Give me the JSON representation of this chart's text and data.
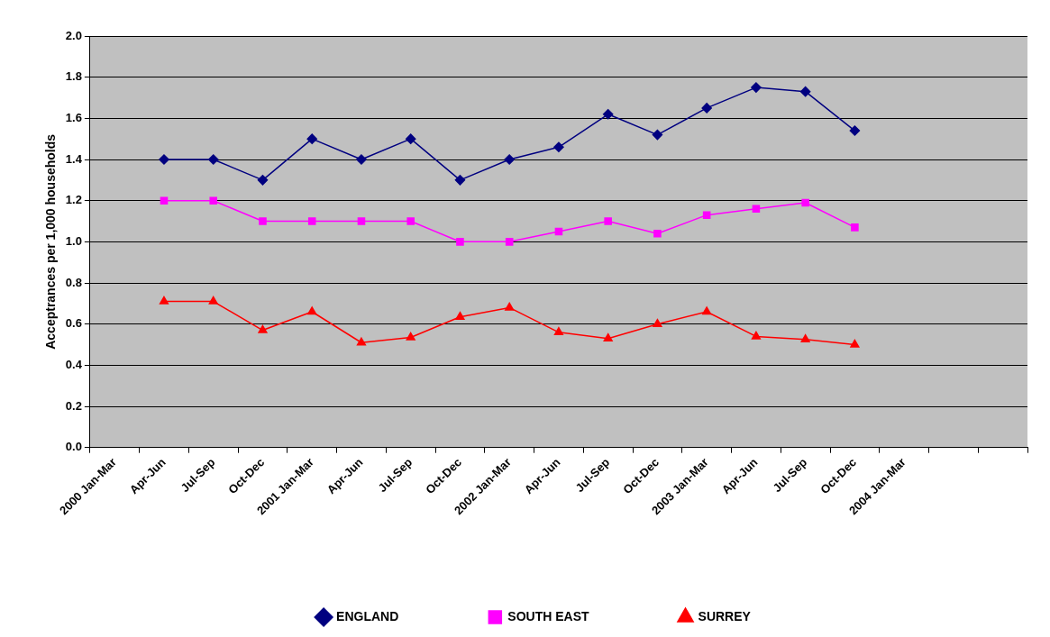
{
  "chart_data": {
    "type": "line",
    "ylabel": "Acceptrances per 1,000 households",
    "categories": [
      "2000 Jan-Mar",
      "Apr-Jun",
      "Jul-Sep",
      "Oct-Dec",
      "2001 Jan-Mar",
      "Apr-Jun",
      "Jul-Sep",
      "Oct-Dec",
      "2002 Jan-Mar",
      "Apr-Jun",
      "Jul-Sep",
      "Oct-Dec",
      "2003 Jan-Mar",
      "Apr-Jun",
      "Jul-Sep",
      "Oct-Dec",
      "2004 Jan-Mar",
      null,
      null
    ],
    "series": [
      {
        "name": "ENGLAND",
        "color": "#000080",
        "marker": "diamond",
        "values": [
          null,
          1.4,
          1.4,
          1.3,
          1.5,
          1.4,
          1.5,
          1.3,
          1.4,
          1.46,
          1.62,
          1.52,
          1.65,
          1.75,
          1.73,
          1.54,
          null,
          null,
          null
        ]
      },
      {
        "name": "SOUTH EAST",
        "color": "#ff00ff",
        "marker": "square",
        "values": [
          null,
          1.2,
          1.2,
          1.1,
          1.1,
          1.1,
          1.1,
          1.0,
          1.0,
          1.05,
          1.1,
          1.04,
          1.13,
          1.16,
          1.19,
          1.07,
          null,
          null,
          null
        ]
      },
      {
        "name": "SURREY",
        "color": "#ff0000",
        "marker": "triangle",
        "values": [
          null,
          0.71,
          0.71,
          0.57,
          0.66,
          0.51,
          0.535,
          0.635,
          0.68,
          0.56,
          0.53,
          0.6,
          0.66,
          0.54,
          0.525,
          0.5,
          null,
          null,
          null
        ]
      }
    ],
    "ylim": [
      0,
      2.0
    ],
    "yticks": [
      {
        "value": 0,
        "label": "0.0"
      },
      {
        "value": 0.2,
        "label": "0.2"
      },
      {
        "value": 0.4,
        "label": "0.4"
      },
      {
        "value": 0.6,
        "label": "0.6"
      },
      {
        "value": 0.8,
        "label": "0.8"
      },
      {
        "value": 1.0,
        "label": "1.0"
      },
      {
        "value": 1.2,
        "label": "1.2"
      },
      {
        "value": 1.4,
        "label": "1.4"
      },
      {
        "value": 1.6,
        "label": "1.6"
      },
      {
        "value": 1.8,
        "label": "1.8"
      },
      {
        "value": 2.0,
        "label": "2.0"
      }
    ],
    "grid": "y",
    "legend": "bottom",
    "line_style": "solid"
  }
}
